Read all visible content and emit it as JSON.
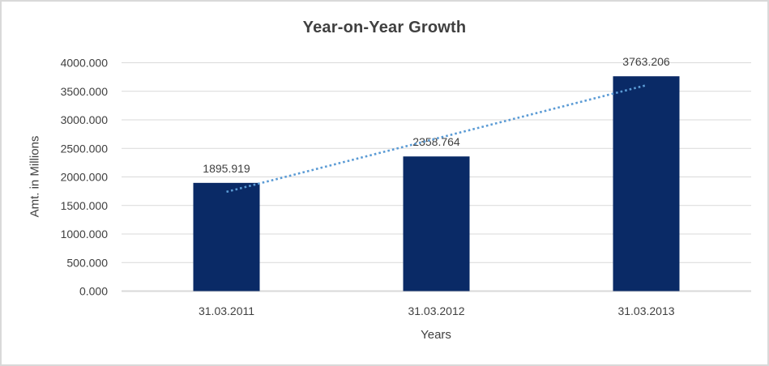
{
  "window": {
    "background": "#ffffff",
    "border_color": "#d9d9d9"
  },
  "chart_data": {
    "type": "bar",
    "title": "Year-on-Year Growth",
    "categories": [
      "31.03.2011",
      "31.03.2012",
      "31.03.2013"
    ],
    "values": [
      1895.919,
      2358.764,
      3763.206
    ],
    "value_labels": [
      "1895.919",
      "2358.764",
      "3763.206"
    ],
    "xlabel": "Years",
    "ylabel": "Amt. in Millions",
    "ylim": [
      0,
      4000
    ],
    "ytick_values": [
      0,
      500,
      1000,
      1500,
      2000,
      2500,
      3000,
      3500,
      4000
    ],
    "ytick_labels": [
      "0.000",
      "500.000",
      "1000.000",
      "1500.000",
      "2000.000",
      "2500.000",
      "3000.000",
      "3500.000",
      "4000.000"
    ],
    "grid": true,
    "legend": false,
    "trendline": {
      "type": "linear",
      "style": "dotted"
    },
    "colors": {
      "bar": "#0a2a66",
      "trendline": "#5b9bd5",
      "text": "#404040",
      "gridline": "#d9d9d9",
      "axis_line": "#d9d9d9"
    }
  }
}
